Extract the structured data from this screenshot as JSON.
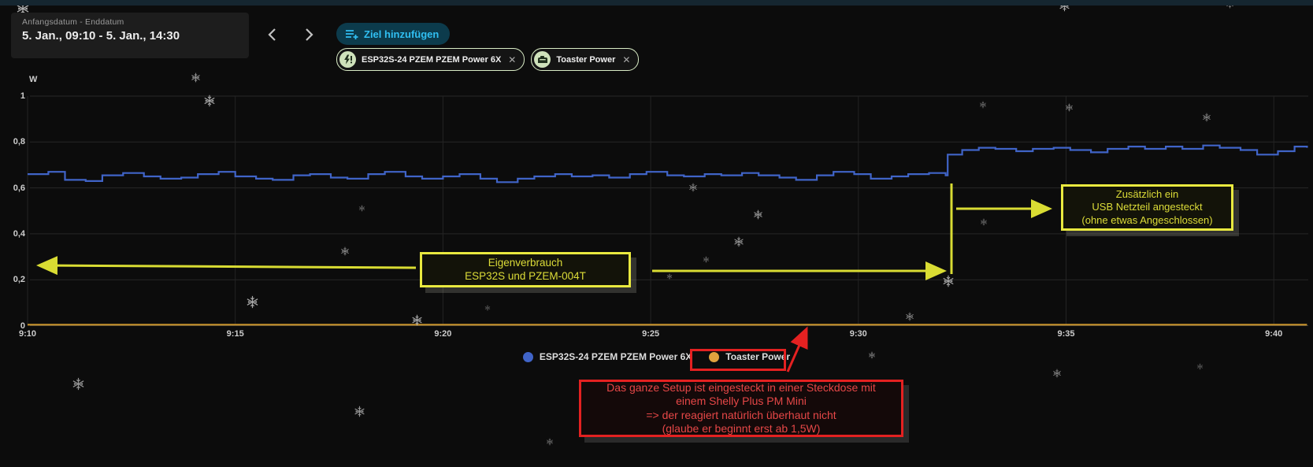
{
  "header": {
    "date_range": {
      "label": "Anfangsdatum - Enddatum",
      "value": "5. Jan., 09:10 - 5. Jan., 14:30"
    },
    "add_goal": {
      "label": "Ziel hinzufügen"
    },
    "chips": [
      {
        "label": "ESP32S-24 PZEM PZEM Power 6X",
        "icon": "flash-alert-icon",
        "close": "✕"
      },
      {
        "label": "Toaster Power",
        "icon": "toaster-icon",
        "close": "✕"
      }
    ]
  },
  "chart_data": {
    "type": "line",
    "title": "",
    "ylabel": "W",
    "ylim": [
      0,
      1
    ],
    "ytick_values": [
      0,
      0.2,
      0.4,
      0.6,
      0.8,
      1
    ],
    "ytick_labels": [
      "0",
      "0,2",
      "0,4",
      "0,6",
      "0,8",
      "1"
    ],
    "xtick_labels": [
      "9:10",
      "9:15",
      "9:20",
      "9:25",
      "9:30",
      "9:35",
      "9:40"
    ],
    "x_unit": "minutes after 9:10",
    "xlim": [
      0,
      30.8
    ],
    "grid": true,
    "legend_position": "bottom",
    "series": [
      {
        "name": "ESP32S-24 PZEM PZEM Power 6X",
        "color": "#4064c8",
        "style": "step",
        "points": [
          [
            0,
            0.66
          ],
          [
            0.5,
            0.67
          ],
          [
            0.9,
            0.635
          ],
          [
            1.4,
            0.63
          ],
          [
            1.8,
            0.655
          ],
          [
            2.3,
            0.665
          ],
          [
            2.8,
            0.65
          ],
          [
            3.2,
            0.64
          ],
          [
            3.7,
            0.645
          ],
          [
            4.1,
            0.66
          ],
          [
            4.6,
            0.67
          ],
          [
            5.0,
            0.65
          ],
          [
            5.5,
            0.64
          ],
          [
            5.9,
            0.635
          ],
          [
            6.4,
            0.655
          ],
          [
            6.8,
            0.66
          ],
          [
            7.3,
            0.645
          ],
          [
            7.7,
            0.64
          ],
          [
            8.2,
            0.66
          ],
          [
            8.6,
            0.67
          ],
          [
            9.1,
            0.65
          ],
          [
            9.5,
            0.64
          ],
          [
            10.0,
            0.65
          ],
          [
            10.4,
            0.66
          ],
          [
            10.9,
            0.64
          ],
          [
            11.3,
            0.625
          ],
          [
            11.8,
            0.64
          ],
          [
            12.2,
            0.65
          ],
          [
            12.7,
            0.66
          ],
          [
            13.1,
            0.65
          ],
          [
            13.6,
            0.655
          ],
          [
            14.0,
            0.645
          ],
          [
            14.5,
            0.66
          ],
          [
            14.9,
            0.67
          ],
          [
            15.4,
            0.655
          ],
          [
            15.8,
            0.65
          ],
          [
            16.3,
            0.66
          ],
          [
            16.7,
            0.655
          ],
          [
            17.2,
            0.665
          ],
          [
            17.6,
            0.655
          ],
          [
            18.1,
            0.645
          ],
          [
            18.5,
            0.635
          ],
          [
            19.0,
            0.655
          ],
          [
            19.4,
            0.67
          ],
          [
            19.9,
            0.66
          ],
          [
            20.3,
            0.64
          ],
          [
            20.8,
            0.65
          ],
          [
            21.2,
            0.66
          ],
          [
            21.7,
            0.665
          ],
          [
            22.1,
            0.655
          ],
          [
            22.15,
            0.745
          ],
          [
            22.5,
            0.765
          ],
          [
            22.9,
            0.775
          ],
          [
            23.3,
            0.77
          ],
          [
            23.8,
            0.76
          ],
          [
            24.2,
            0.77
          ],
          [
            24.7,
            0.775
          ],
          [
            25.1,
            0.765
          ],
          [
            25.6,
            0.755
          ],
          [
            26.0,
            0.77
          ],
          [
            26.5,
            0.78
          ],
          [
            26.9,
            0.77
          ],
          [
            27.4,
            0.78
          ],
          [
            27.8,
            0.77
          ],
          [
            28.3,
            0.785
          ],
          [
            28.7,
            0.775
          ],
          [
            29.2,
            0.765
          ],
          [
            29.6,
            0.745
          ],
          [
            30.1,
            0.76
          ],
          [
            30.5,
            0.78
          ],
          [
            30.8,
            0.775
          ]
        ]
      },
      {
        "name": "Toaster Power",
        "color": "#c8932d",
        "style": "line",
        "points": [
          [
            0,
            0.004
          ],
          [
            30.8,
            0.004
          ]
        ]
      }
    ]
  },
  "legend": [
    {
      "label": "ESP32S-24 PZEM PZEM Power 6X",
      "color": "#4064c8"
    },
    {
      "label": "Toaster Power",
      "color": "#e0a23e"
    }
  ],
  "annotations": {
    "yellow_box_1": {
      "lines": [
        "Eigenverbrauch",
        "ESP32S und PZEM-004T"
      ]
    },
    "yellow_box_2": {
      "lines": [
        "Zusätzlich ein",
        "USB Netzteil angesteckt",
        "(ohne etwas Angeschlossen)"
      ]
    },
    "red_box": {
      "lines": [
        "Das ganze Setup ist eingesteckt in einer Steckdose mit",
        "einem Shelly Plus PM Mini",
        "=> der reagiert natürlich überhaut nicht",
        "(glaube er beginnt erst ab 1,5W)"
      ]
    },
    "colors": {
      "yellow": "#e9e93f",
      "red": "#e42121"
    }
  }
}
